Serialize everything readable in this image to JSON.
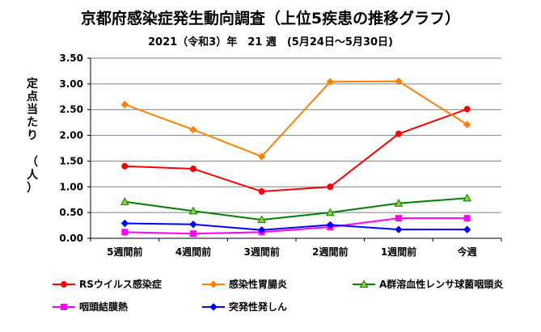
{
  "chart_data": {
    "type": "line",
    "title": "京都府感染症発生動向調査（上位5疾患の推移グラフ）",
    "subtitle": "2021（令和3）年　21 週　(5月24日～5月30日)",
    "ylabel_main": "定点当たり",
    "ylabel_unit": "（人）",
    "xlabel": "",
    "categories": [
      "5週間前",
      "4週間前",
      "3週間前",
      "2週間前",
      "1週間前",
      "今週"
    ],
    "ylim": [
      0,
      3.5
    ],
    "yticks": [
      "0.00",
      "0.50",
      "1.00",
      "1.50",
      "2.00",
      "2.50",
      "3.00",
      "3.50"
    ],
    "grid": "horizontal",
    "legend_position": "bottom",
    "series": [
      {
        "name": "RSウイルス感染症",
        "color": "#ff0000",
        "marker": "circle",
        "values": [
          1.4,
          1.35,
          0.91,
          1.0,
          2.03,
          2.51
        ]
      },
      {
        "name": "感染性胃腸炎",
        "color": "#ff8000",
        "marker": "diamond",
        "values": [
          2.6,
          2.11,
          1.59,
          3.04,
          3.05,
          2.21
        ]
      },
      {
        "name": "A群溶血性レンサ球菌咽頭炎",
        "color": "#008000",
        "marker": "triangle",
        "values": [
          0.71,
          0.53,
          0.36,
          0.5,
          0.68,
          0.78
        ]
      },
      {
        "name": "咽頭結膜熱",
        "color": "#ff00ff",
        "marker": "square",
        "values": [
          0.12,
          0.09,
          0.12,
          0.22,
          0.39,
          0.39
        ]
      },
      {
        "name": "突発性発しん",
        "color": "#0000ff",
        "marker": "diamond",
        "values": [
          0.29,
          0.27,
          0.16,
          0.26,
          0.17,
          0.17
        ]
      }
    ]
  }
}
